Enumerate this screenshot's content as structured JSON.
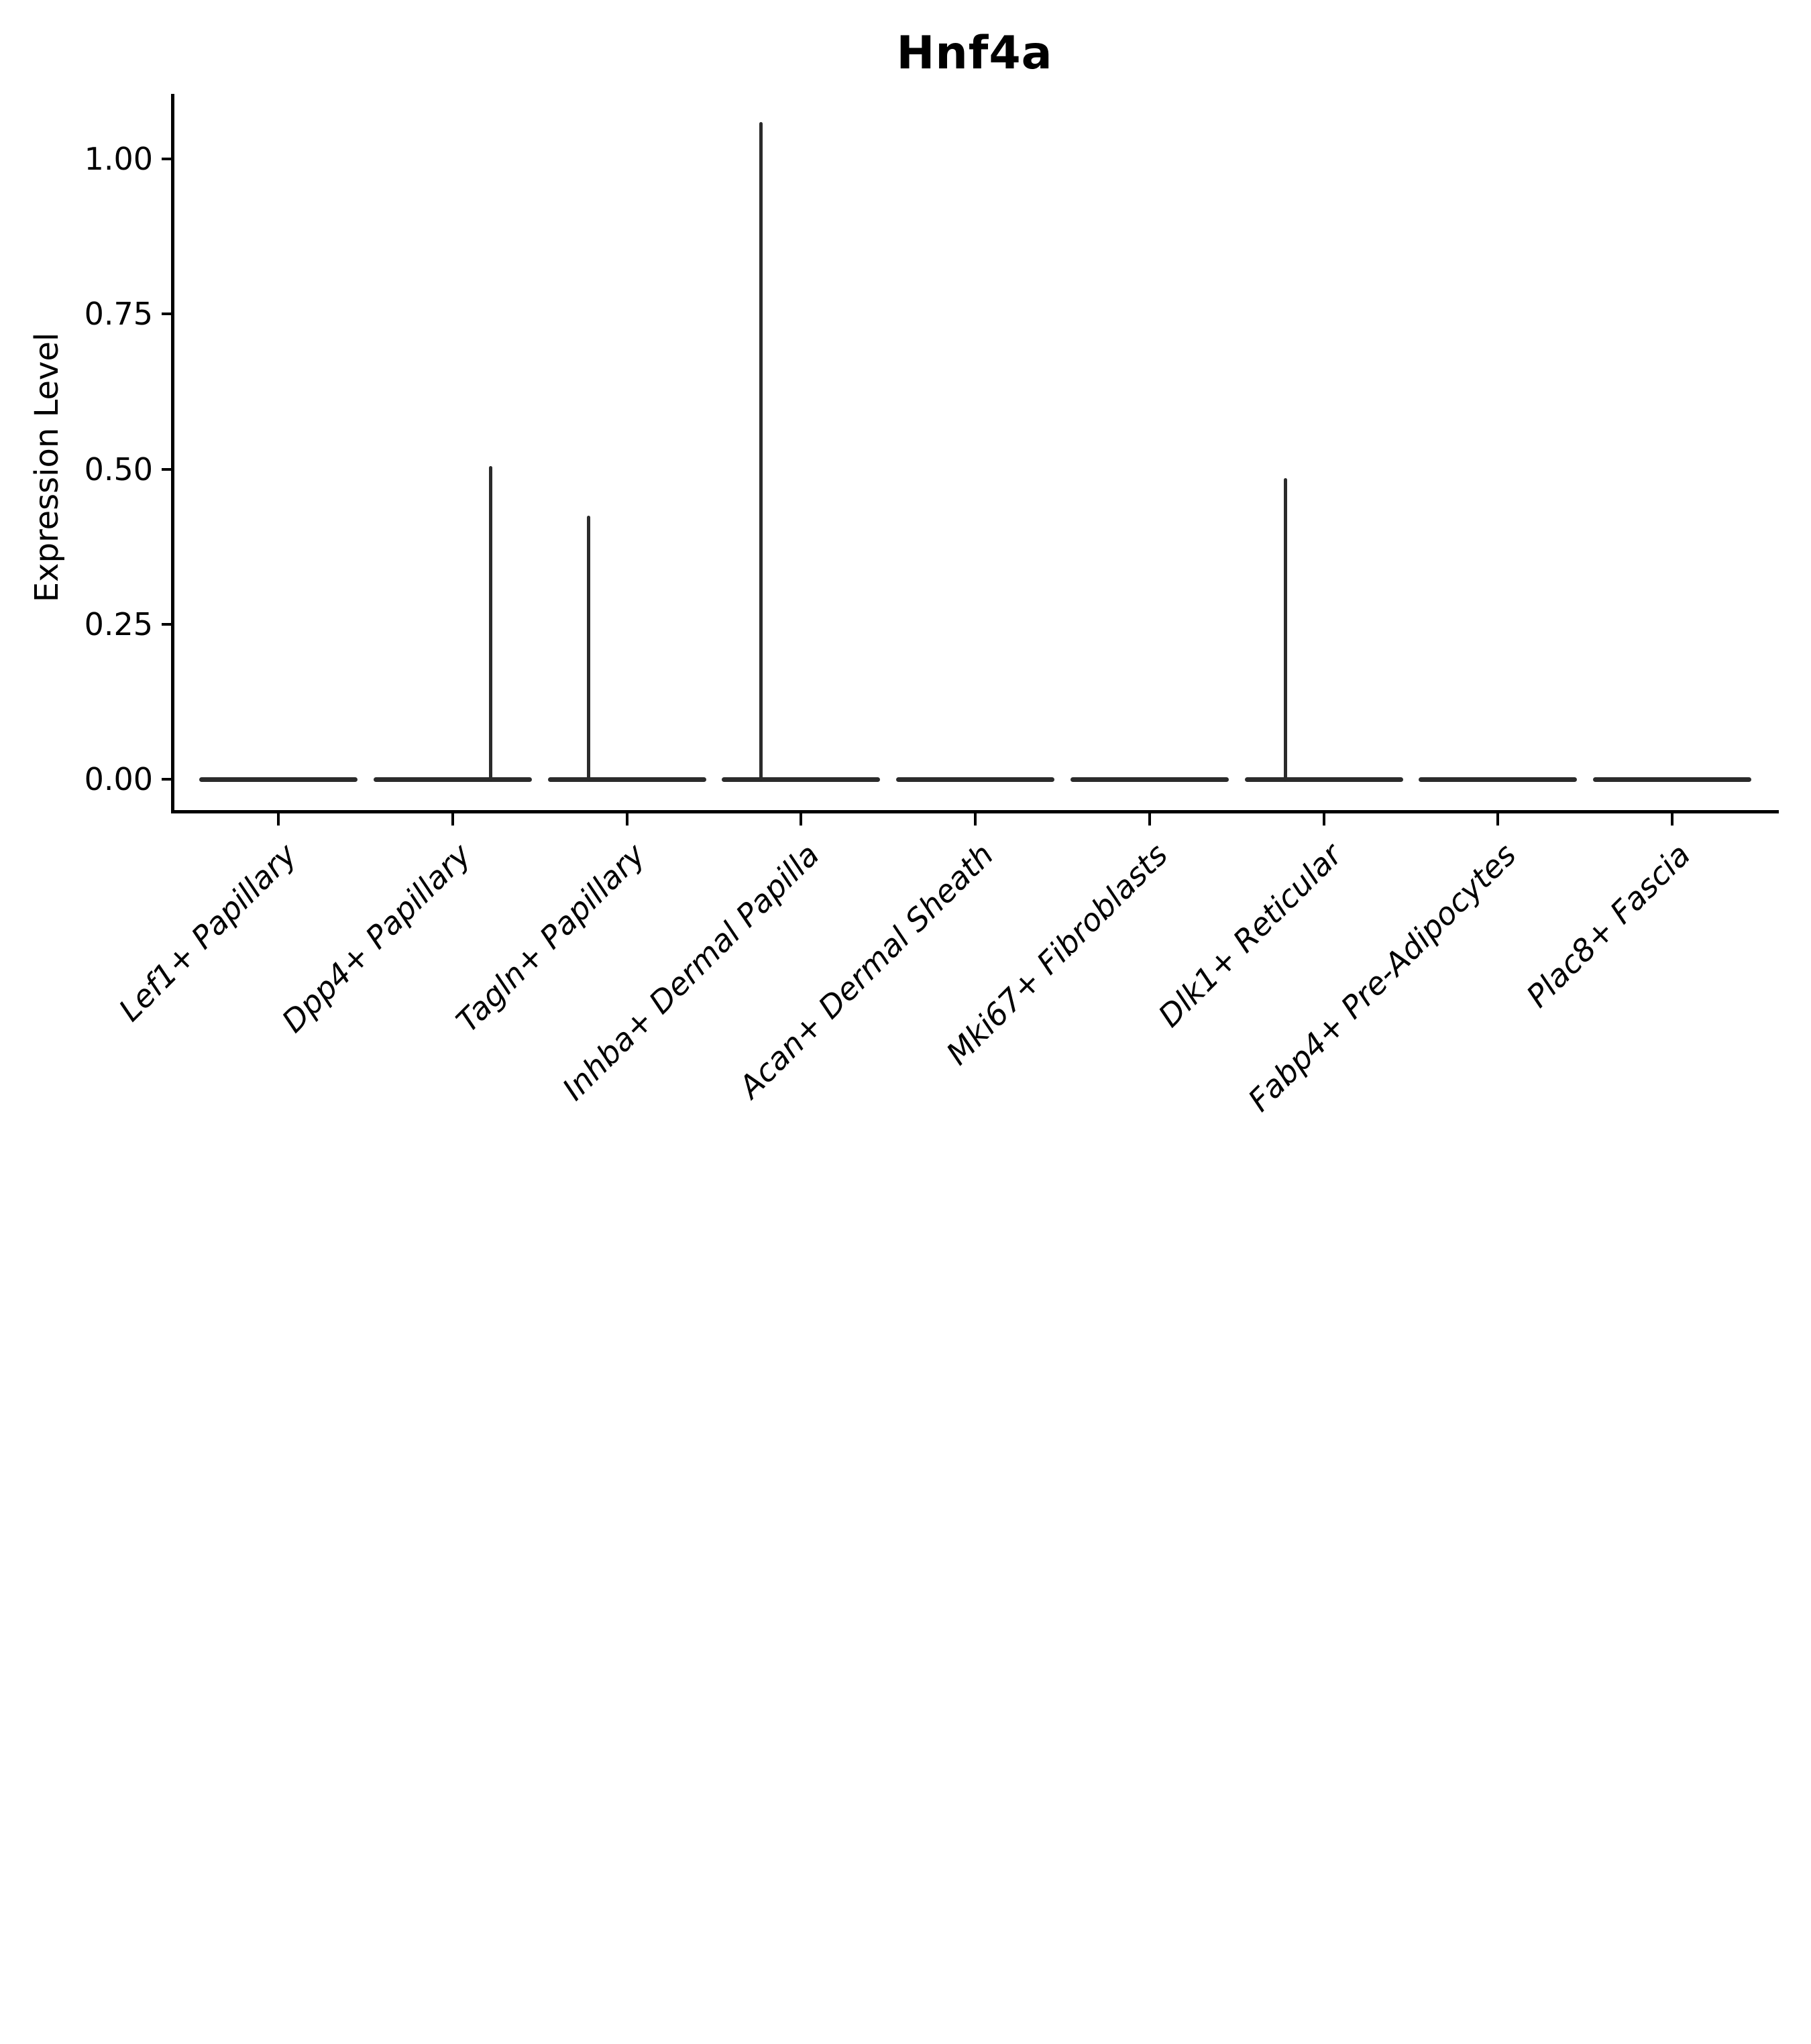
{
  "figure": {
    "background_color": "#ffffff",
    "axis_color": "#000000",
    "text_color": "#000000",
    "violin_color": "#2b2b2b"
  },
  "chart_data": {
    "type": "violin",
    "title": "Hnf4a",
    "xlabel": "",
    "ylabel": "Expression Level",
    "grid": false,
    "legend": false,
    "ylim": [
      -0.05,
      1.11
    ],
    "y_axis": {
      "ticks": [
        {
          "value": 0.0,
          "label": "0.00"
        },
        {
          "value": 0.25,
          "label": "0.25"
        },
        {
          "value": 0.5,
          "label": "0.50"
        },
        {
          "value": 0.75,
          "label": "0.75"
        },
        {
          "value": 1.0,
          "label": "1.00"
        }
      ]
    },
    "categories": [
      "Lef1+ Papillary",
      "Dpp4+ Papillary",
      "Tagln+ Papillary",
      "Inhba+ Dermal Papilla",
      "Acan+ Dermal Sheath",
      "Mki67+ Fibroblasts",
      "Dlk1+ Reticular",
      "Fabp4+ Pre-Adipocytes",
      "Plac8+ Fascia"
    ],
    "violins": [
      {
        "category": "Lef1+ Papillary",
        "max_expression": 0,
        "bulk_at_zero": true,
        "spike_offset": 0
      },
      {
        "category": "Dpp4+ Papillary",
        "max_expression": 0.505,
        "bulk_at_zero": true,
        "spike_offset": 0.22
      },
      {
        "category": "Tagln+ Papillary",
        "max_expression": 0.425,
        "bulk_at_zero": true,
        "spike_offset": -0.22
      },
      {
        "category": "Inhba+ Dermal Papilla",
        "max_expression": 1.06,
        "bulk_at_zero": true,
        "spike_offset": -0.23
      },
      {
        "category": "Acan+ Dermal Sheath",
        "max_expression": 0,
        "bulk_at_zero": true,
        "spike_offset": 0
      },
      {
        "category": "Mki67+ Fibroblasts",
        "max_expression": 0,
        "bulk_at_zero": true,
        "spike_offset": 0
      },
      {
        "category": "Dlk1+ Reticular",
        "max_expression": 0.485,
        "bulk_at_zero": true,
        "spike_offset": -0.22
      },
      {
        "category": "Fabp4+ Pre-Adipocytes",
        "max_expression": 0,
        "bulk_at_zero": true,
        "spike_offset": 0
      },
      {
        "category": "Plac8+ Fascia",
        "max_expression": 0,
        "bulk_at_zero": true,
        "spike_offset": 0
      }
    ]
  }
}
